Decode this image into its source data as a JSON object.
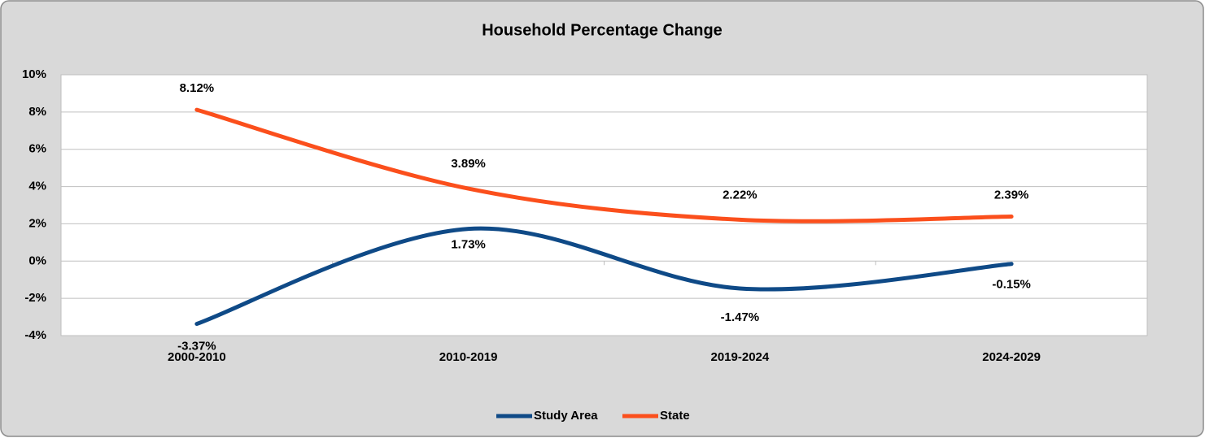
{
  "chart_data": {
    "type": "line",
    "title": "Household Percentage Change",
    "categories": [
      "2000-2010",
      "2010-2019",
      "2019-2024",
      "2024-2029"
    ],
    "series": [
      {
        "name": "Study Area",
        "color": "#0f4a87",
        "values": [
          -3.37,
          1.73,
          -1.47,
          -0.15
        ],
        "value_labels": [
          "-3.37%",
          "1.73%",
          "-1.47%",
          "-0.15%"
        ]
      },
      {
        "name": "State",
        "color": "#fb4f1c",
        "values": [
          8.12,
          3.89,
          2.22,
          2.39
        ],
        "value_labels": [
          "8.12%",
          "3.89%",
          "2.22%",
          "2.39%"
        ]
      }
    ],
    "ylim": [
      -4,
      10
    ],
    "yticks": [
      {
        "value": -4,
        "label": "-4%"
      },
      {
        "value": -2,
        "label": "-2%"
      },
      {
        "value": 0,
        "label": "0%"
      },
      {
        "value": 2,
        "label": "2%"
      },
      {
        "value": 4,
        "label": "4%"
      },
      {
        "value": 6,
        "label": "6%"
      },
      {
        "value": 8,
        "label": "8%"
      },
      {
        "value": 10,
        "label": "10%"
      }
    ],
    "grid": true,
    "legend": "bottom"
  }
}
